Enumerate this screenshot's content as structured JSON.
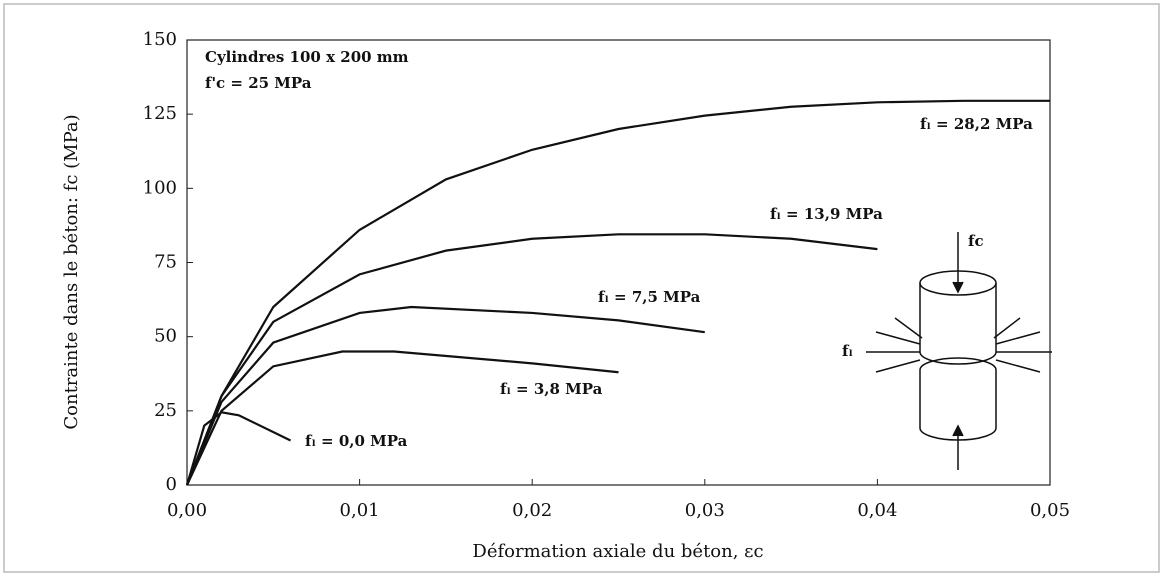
{
  "chart_data": {
    "type": "line",
    "annotations": [
      "Cylindres 100 x 200 mm",
      "f'c = 25 MPa"
    ],
    "x_label": "Déformation axiale du béton, εc",
    "y_label": "Contrainte dans le béton: fc (MPa)",
    "inset": {
      "axial_label": "fc",
      "lateral_label": "fₗ"
    },
    "color": "#111111",
    "series": [
      {
        "name": "fₗ = 28,2 MPa",
        "x": [
          0,
          0.002,
          0.005,
          0.01,
          0.015,
          0.02,
          0.025,
          0.03,
          0.035,
          0.04,
          0.045,
          0.05
        ],
        "values": [
          0,
          30,
          60,
          86,
          103,
          113,
          120,
          124.5,
          127.5,
          129,
          129.5,
          129.5
        ]
      },
      {
        "name": "fₗ = 13,9 MPa",
        "x": [
          0,
          0.002,
          0.005,
          0.01,
          0.015,
          0.02,
          0.025,
          0.03,
          0.035,
          0.04
        ],
        "values": [
          0,
          30,
          55,
          71,
          79,
          83,
          84.5,
          84.5,
          83,
          79.5
        ]
      },
      {
        "name": "fₗ = 7,5 MPa",
        "x": [
          0,
          0.002,
          0.005,
          0.01,
          0.013,
          0.02,
          0.025,
          0.03
        ],
        "values": [
          0,
          28,
          48,
          58,
          60,
          58,
          55.5,
          51.5
        ]
      },
      {
        "name": "fₗ = 3,8 MPa",
        "x": [
          0,
          0.002,
          0.005,
          0.009,
          0.012,
          0.02,
          0.025
        ],
        "values": [
          0,
          25,
          40,
          45,
          45,
          41,
          38
        ]
      },
      {
        "name": "fₗ = 0,0 MPa",
        "x": [
          0,
          0.001,
          0.002,
          0.003,
          0.006
        ],
        "values": [
          0,
          20,
          24.5,
          23.5,
          15
        ]
      }
    ],
    "xlim": [
      0,
      0.05
    ],
    "xticks": [
      {
        "value": 0,
        "label": "0,00"
      },
      {
        "value": 0.01,
        "label": "0,01"
      },
      {
        "value": 0.02,
        "label": "0,02"
      },
      {
        "value": 0.03,
        "label": "0,03"
      },
      {
        "value": 0.04,
        "label": "0,04"
      },
      {
        "value": 0.05,
        "label": "0,05"
      }
    ],
    "ylim": [
      0,
      150
    ],
    "yticks": [
      0,
      25,
      50,
      75,
      100,
      125,
      150
    ]
  }
}
